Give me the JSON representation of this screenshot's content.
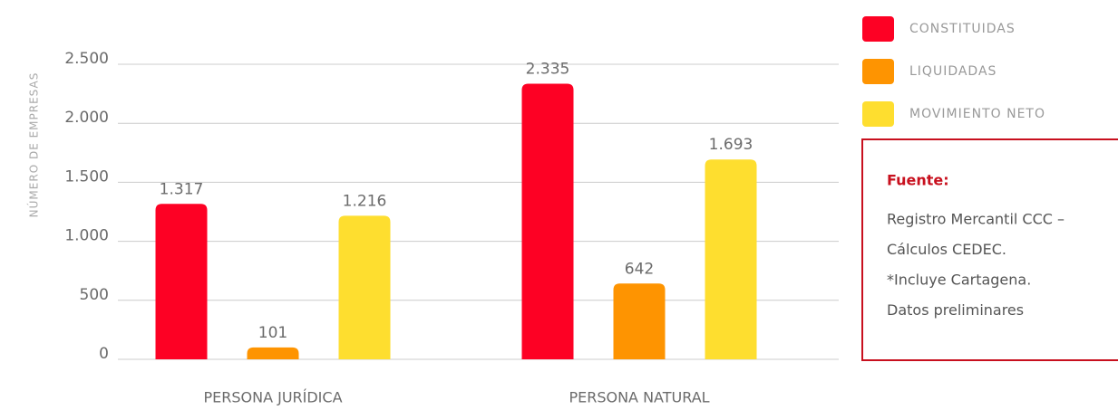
{
  "chart_data": {
    "type": "bar",
    "y_label": "NÚMERO DE EMPRESAS",
    "categories": [
      "PERSONA JURÍDICA",
      "PERSONA NATURAL"
    ],
    "series": [
      {
        "name": "CONSTITUIDAS",
        "color": "#fd0124",
        "values": [
          1317,
          2335
        ],
        "value_labels": [
          "1.317",
          "2.335"
        ]
      },
      {
        "name": "LIQUIDADAS",
        "color": "#fe9401",
        "values": [
          101,
          642
        ]
      },
      {
        "name": "MOVIMIENTO NETO",
        "color": "#fede2f",
        "values": [
          1216,
          1693
        ],
        "value_labels": [
          "1.216",
          "1.693"
        ]
      }
    ],
    "ylim": [
      0,
      2500
    ],
    "yticks": [
      0,
      500,
      {
        "value": 1000,
        "label": "1.000"
      },
      {
        "value": 1500,
        "label": "1.500"
      },
      {
        "value": 2000,
        "label": "2.000"
      },
      {
        "value": 2500,
        "label": "2.500"
      }
    ],
    "grid": true,
    "legend": "top-right"
  },
  "source": {
    "title": "Fuente:",
    "lines": [
      "Registro Mercantil CCC –",
      "Cálculos CEDEC.",
      "*Incluye Cartagena.",
      "Datos preliminares"
    ]
  }
}
